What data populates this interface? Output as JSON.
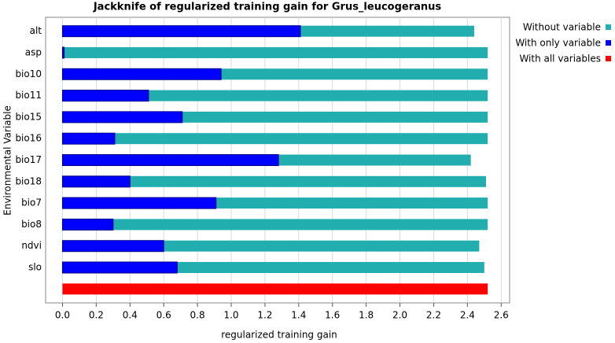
{
  "chart_data": {
    "type": "bar",
    "orientation": "horizontal",
    "title": "Jackknife of regularized training gain for Grus_leucogeranus",
    "x_label": "regularized training gain",
    "y_label": "Environmental Variable",
    "categories": [
      "alt",
      "asp",
      "bio10",
      "bio11",
      "bio15",
      "bio16",
      "bio17",
      "bio18",
      "bio7",
      "bio8",
      "ndvi",
      "slo",
      null
    ],
    "series": [
      {
        "name": "Without variable",
        "color": "#22aeae",
        "values": [
          2.44,
          2.52,
          2.52,
          2.52,
          2.52,
          2.52,
          2.42,
          2.51,
          2.52,
          2.52,
          2.47,
          2.5,
          null
        ]
      },
      {
        "name": "With only variable",
        "color": "#0000ff",
        "values": [
          1.41,
          0.01,
          0.94,
          0.51,
          0.71,
          0.31,
          1.28,
          0.4,
          0.91,
          0.3,
          0.6,
          0.68,
          null
        ]
      },
      {
        "name": "With all variables",
        "color": "#ff0000",
        "values": [
          null,
          null,
          null,
          null,
          null,
          null,
          null,
          null,
          null,
          null,
          null,
          null,
          2.52
        ]
      }
    ],
    "xlim": [
      -0.1,
      2.65
    ],
    "xticks": [
      {
        "value": 0,
        "label": "0.0"
      },
      0.2,
      0.4,
      0.6,
      0.8,
      {
        "value": 1,
        "label": "1.0"
      },
      1.2,
      1.4,
      1.6,
      1.8,
      {
        "value": 2,
        "label": "2.0"
      },
      2.2,
      2.4,
      2.6
    ],
    "grid": true,
    "legend": "right"
  }
}
